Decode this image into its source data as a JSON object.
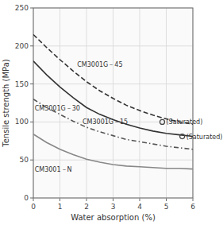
{
  "chart_data": {
    "type": "line",
    "xlabel": "Water absorption (%)",
    "ylabel": "Tensile strength (MPa)",
    "xlim": [
      0,
      6
    ],
    "ylim": [
      0,
      250
    ],
    "xticks": [
      0,
      1,
      2,
      3,
      4,
      5,
      6
    ],
    "yticks": [
      0,
      50,
      100,
      150,
      200,
      250
    ],
    "grid": true,
    "x": [
      0,
      0.5,
      1.0,
      1.5,
      2.0,
      2.5,
      3.0,
      3.5,
      4.0,
      4.5,
      5.0,
      5.5,
      6.0
    ],
    "series": [
      {
        "color": "#333333",
        "line_style": "dashed",
        "values": [
          215,
          198,
          182,
          167,
          153,
          141,
          131,
          122,
          115,
          109,
          104,
          100,
          97
        ]
      },
      {
        "color": "#333333",
        "line_style": "solid",
        "values": [
          180,
          162,
          146,
          132,
          119,
          110,
          103,
          97,
          92,
          88,
          85,
          83,
          81
        ]
      },
      {
        "color": "#555555",
        "line_style": "dashdot",
        "values": [
          130,
          119,
          110,
          101,
          93,
          87,
          82,
          77,
          74,
          71,
          68,
          66,
          64
        ]
      },
      {
        "color": "#888888",
        "line_style": "solid",
        "values": [
          84,
          73,
          64,
          57,
          51,
          47,
          44,
          42,
          41,
          40,
          39,
          39,
          38
        ]
      },
      {
        "type": "scatter",
        "marker": "circle",
        "color": "#444444",
        "x": [
          4.85,
          5.6
        ],
        "values": [
          100,
          81
        ]
      }
    ],
    "annotations": [
      {
        "text": "(Saturated)",
        "x": 5.0,
        "y": 100
      },
      {
        "text": "(Saturated)",
        "x": 5.75,
        "y": 81
      },
      {
        "text": "CM3001G－45",
        "x": 1.65,
        "y": 176
      },
      {
        "text": "CM3001G－30",
        "x": 0.05,
        "y": 118
      },
      {
        "text": "CM3001G－15",
        "x": 1.85,
        "y": 100
      },
      {
        "text": "CM3001－N",
        "x": 0.05,
        "y": 38
      }
    ]
  }
}
